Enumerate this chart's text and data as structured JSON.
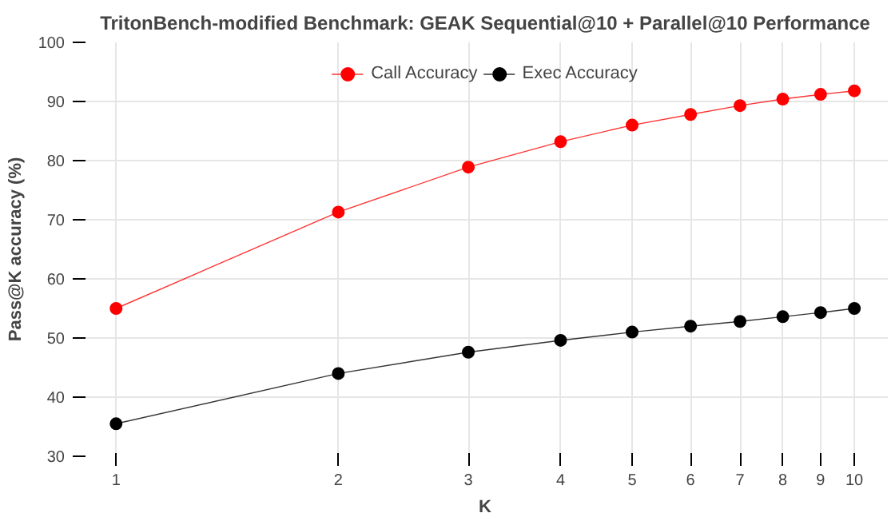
{
  "chart_data": {
    "type": "line",
    "title": "TritonBench-modified Benchmark: GEAK Sequential@10 + Parallel@10 Performance",
    "xlabel": "K",
    "ylabel": "Pass@K accuracy (%)",
    "x": [
      1,
      2,
      3,
      4,
      5,
      6,
      7,
      8,
      9,
      10
    ],
    "series": [
      {
        "name": "Call Accuracy",
        "color": "#ff0000",
        "values": [
          55.0,
          71.3,
          78.9,
          83.2,
          86.0,
          87.8,
          89.3,
          90.4,
          91.2,
          91.8
        ]
      },
      {
        "name": "Exec Accuracy",
        "color": "#000000",
        "values": [
          35.5,
          44.0,
          47.6,
          49.6,
          51.0,
          52.0,
          52.8,
          53.6,
          54.3,
          55.0
        ]
      }
    ],
    "log": "x",
    "xlim": [
      0.9,
      11.1
    ],
    "xticks": [
      1,
      2,
      3,
      4,
      5,
      6,
      7,
      8,
      9,
      10
    ],
    "ylim": [
      30,
      100
    ],
    "yticks": [
      30,
      40,
      50,
      60,
      70,
      80,
      90,
      100
    ],
    "grid": true,
    "legend": "top",
    "marker": "circle",
    "line_style": "solid"
  }
}
